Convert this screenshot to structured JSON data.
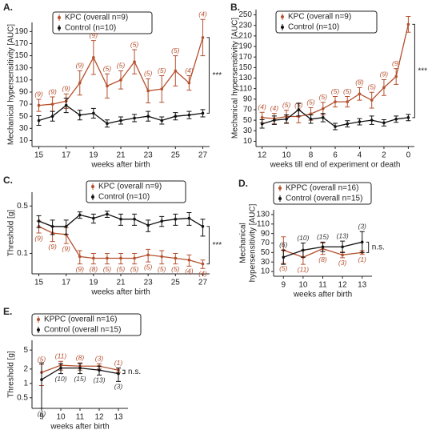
{
  "chart_data": [
    {
      "type": "line",
      "panel": "A.",
      "xlabel": "weeks after birth",
      "ylabel": "Mechanical hypersensitivity [AUC]",
      "x": [
        15,
        16,
        17,
        18,
        19,
        20,
        21,
        22,
        23,
        24,
        25,
        26,
        27
      ],
      "xlim": [
        14.5,
        27.5
      ],
      "xticks": [
        15,
        17,
        19,
        21,
        23,
        25,
        27
      ],
      "ylim": [
        0,
        205
      ],
      "yticks": [
        10,
        30,
        50,
        70,
        90,
        110,
        130,
        150,
        170,
        190
      ],
      "log": false,
      "annotation": "***",
      "series": [
        {
          "name": "KPC (overall n=9)",
          "color": "#b5502e",
          "values": [
            68,
            70,
            75,
            105,
            147,
            100,
            110,
            140,
            92,
            95,
            125,
            105,
            180
          ],
          "errors": [
            10,
            12,
            12,
            20,
            28,
            20,
            15,
            20,
            20,
            22,
            25,
            12,
            30
          ],
          "labels": [
            "(9)",
            "(9)",
            "(9)",
            "(9)",
            "(9)",
            "(5)",
            "(5)",
            "(5)",
            "(5)",
            "(5)",
            "(5)",
            "(4)",
            "(4)"
          ],
          "label_side": "above"
        },
        {
          "name": "Control (n=10)",
          "color": "#111111",
          "values": [
            43,
            50,
            68,
            52,
            55,
            38,
            43,
            47,
            50,
            43,
            50,
            52,
            55
          ],
          "errors": [
            8,
            8,
            12,
            8,
            8,
            6,
            6,
            6,
            8,
            6,
            6,
            6,
            6
          ]
        }
      ]
    },
    {
      "type": "line",
      "panel": "B.",
      "xlabel": "weeks till end of experiment or death",
      "ylabel": "Mechanical hypersensitivity [AUC]",
      "x": [
        12,
        11,
        10,
        9,
        8,
        7,
        6,
        5,
        4,
        3,
        2,
        1,
        0
      ],
      "xlim": [
        12.5,
        -0.5
      ],
      "xticks": [
        12,
        10,
        8,
        6,
        4,
        2,
        0
      ],
      "ylim": [
        0,
        260
      ],
      "yticks": [
        10,
        30,
        50,
        70,
        90,
        110,
        130,
        150,
        170,
        190,
        210,
        230,
        250
      ],
      "log": false,
      "annotation": "***",
      "series": [
        {
          "name": "KPC (overall n=9)",
          "color": "#b5502e",
          "values": [
            55,
            53,
            57,
            57,
            62,
            72,
            85,
            85,
            100,
            88,
            112,
            133,
            232
          ],
          "errors": [
            10,
            10,
            12,
            12,
            12,
            12,
            10,
            10,
            12,
            15,
            15,
            15,
            15
          ],
          "labels": [
            "(4)",
            "(4)",
            "(5)",
            "(5)",
            "(5)",
            "(5)",
            "(5)",
            "(5)",
            "(8)",
            "(5)",
            "(9)",
            "(9)",
            null
          ],
          "label_side": "above"
        },
        {
          "name": "Control (n=10)",
          "color": "#111111",
          "values": [
            43,
            50,
            52,
            70,
            52,
            55,
            38,
            43,
            47,
            50,
            45,
            52,
            55
          ],
          "errors": [
            8,
            8,
            8,
            12,
            8,
            8,
            6,
            6,
            6,
            8,
            6,
            6,
            6
          ]
        }
      ]
    },
    {
      "type": "line",
      "panel": "C.",
      "xlabel": "weeks after birth",
      "ylabel": "Threshold [g]",
      "x": [
        15,
        16,
        17,
        18,
        19,
        20,
        21,
        22,
        23,
        24,
        25,
        26,
        27
      ],
      "xlim": [
        14.5,
        27.5
      ],
      "xticks": [
        15,
        17,
        19,
        21,
        23,
        25,
        27
      ],
      "ylim": [
        0.05,
        0.8
      ],
      "yticks": [
        0.1,
        0.5
      ],
      "log": true,
      "annotation": "***",
      "series": [
        {
          "name": "KPC (overall n=9)",
          "color": "#b5502e",
          "values": [
            0.25,
            0.2,
            0.19,
            0.09,
            0.085,
            0.085,
            0.085,
            0.085,
            0.095,
            0.09,
            0.085,
            0.08,
            0.07
          ],
          "errors": [
            0.05,
            0.05,
            0.05,
            0.02,
            0.015,
            0.015,
            0.015,
            0.015,
            0.02,
            0.02,
            0.015,
            0.015,
            0.01
          ],
          "labels": [
            "(9)",
            "(9)",
            "(9)",
            "(9)",
            "(8)",
            "(5)",
            "(5)",
            "(5)",
            "(5)",
            "(5)",
            "(5)",
            "(4)",
            "(4)"
          ],
          "label_side": "below"
        },
        {
          "name": "Control (n=10)",
          "color": "#111111",
          "values": [
            0.3,
            0.25,
            0.25,
            0.37,
            0.33,
            0.38,
            0.32,
            0.32,
            0.26,
            0.3,
            0.32,
            0.33,
            0.25
          ],
          "errors": [
            0.06,
            0.06,
            0.06,
            0.04,
            0.05,
            0.04,
            0.06,
            0.06,
            0.05,
            0.05,
            0.06,
            0.07,
            0.07
          ]
        }
      ]
    },
    {
      "type": "line",
      "panel": "D.",
      "xlabel": "weeks after birth",
      "ylabel_lines": [
        "Mechanical",
        "hypersensitivity [AUC]"
      ],
      "x": [
        9,
        10,
        11,
        12,
        13
      ],
      "xlim": [
        8.5,
        13.5
      ],
      "xticks": [
        9,
        10,
        11,
        12,
        13
      ],
      "ylim": [
        0,
        140
      ],
      "yticks": [
        10,
        30,
        50,
        70,
        90,
        110,
        130
      ],
      "log": false,
      "annotation": "n.s.",
      "series": [
        {
          "name": "KPPC (overall n=16)",
          "color": "#b5502e",
          "values": [
            55,
            40,
            58,
            45,
            50
          ],
          "errors": [
            28,
            15,
            12,
            6,
            4
          ],
          "labels": [
            "(5)",
            "(11)",
            "(8)",
            "(3)",
            "(1)"
          ],
          "label_side": "below"
        },
        {
          "name": "Control (overall n=15)",
          "color": "#111111",
          "values": [
            40,
            55,
            62,
            62,
            72
          ],
          "errors": [
            15,
            15,
            10,
            12,
            22
          ],
          "labels": [
            "(6)",
            "(10)",
            "(15)",
            "(13)",
            "(3)"
          ],
          "label_side": "above"
        }
      ]
    },
    {
      "type": "line",
      "panel": "E.",
      "xlabel": "weeks after birth",
      "ylabel": "Threshold [g]",
      "x": [
        9,
        10,
        11,
        12,
        13
      ],
      "xlim": [
        8.5,
        13.5
      ],
      "xticks": [
        9,
        10,
        11,
        12,
        13
      ],
      "ylim": [
        0.3,
        8
      ],
      "yticks": [
        0.5,
        1,
        2,
        5
      ],
      "log": true,
      "annotation": "n.s.",
      "series": [
        {
          "name": "KPPC (overall n=16)",
          "color": "#b5502e",
          "values": [
            1.7,
            2.4,
            2.3,
            2.3,
            1.9
          ],
          "errors": [
            0.8,
            0.5,
            0.4,
            0.3,
            0.2
          ],
          "labels": [
            "(5)",
            "(11)",
            "(8)",
            "(3)",
            "(1)"
          ],
          "label_side": "above"
        },
        {
          "name": "Control (overall n=15)",
          "color": "#111111",
          "values": [
            1.2,
            2.1,
            2.1,
            1.9,
            1.6
          ],
          "errors": [
            1.5,
            0.5,
            0.5,
            0.4,
            0.5
          ],
          "labels": [
            "(6)",
            "(10)",
            "(15)",
            "(13)",
            "(3)"
          ],
          "label_side": "below"
        }
      ]
    }
  ]
}
